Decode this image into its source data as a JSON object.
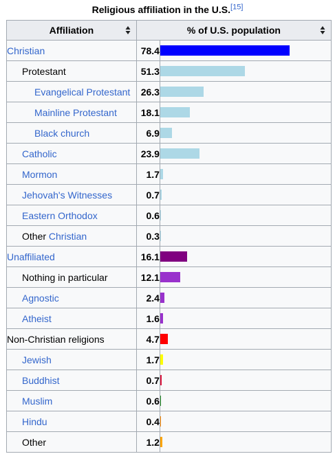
{
  "caption": {
    "title": "Religious affiliation in the U.S.",
    "ref": "[15]"
  },
  "header": {
    "affiliation": "Affiliation",
    "percent": "% of U.S. population"
  },
  "rows": [
    {
      "label": "Christian",
      "value": "78.4",
      "level": 0,
      "link": true,
      "color": "#0000ff"
    },
    {
      "label": "Protestant",
      "value": "51.3",
      "level": 1,
      "link": false,
      "color": "#add8e6"
    },
    {
      "label": "Evangelical Protestant",
      "value": "26.3",
      "level": 2,
      "link": true,
      "color": "#add8e6"
    },
    {
      "label": "Mainline Protestant",
      "value": "18.1",
      "level": 2,
      "link": true,
      "color": "#add8e6"
    },
    {
      "label": "Black church",
      "value": "6.9",
      "level": 2,
      "link": true,
      "color": "#add8e6"
    },
    {
      "label": "Catholic",
      "value": "23.9",
      "level": 1,
      "link": true,
      "color": "#add8e6"
    },
    {
      "label": "Mormon",
      "value": "1.7",
      "level": 1,
      "link": true,
      "color": "#add8e6"
    },
    {
      "label": "Jehovah's Witnesses",
      "value": "0.7",
      "level": 1,
      "link": true,
      "color": "#add8e6"
    },
    {
      "label": "Eastern Orthodox",
      "value": "0.6",
      "level": 1,
      "link": true,
      "color": "#add8e6"
    },
    {
      "label": "Other",
      "label_link": "Christian",
      "value": "0.3",
      "level": 1,
      "link": false,
      "color": "#add8e6"
    },
    {
      "label": "Unaffiliated",
      "value": "16.1",
      "level": 0,
      "link": true,
      "color": "#800080"
    },
    {
      "label": "Nothing in particular",
      "value": "12.1",
      "level": 1,
      "link": false,
      "color": "#9932cc"
    },
    {
      "label": "Agnostic",
      "value": "2.4",
      "level": 1,
      "link": true,
      "color": "#9932cc"
    },
    {
      "label": "Atheist",
      "value": "1.6",
      "level": 1,
      "link": true,
      "color": "#9932cc"
    },
    {
      "label": "Non-Christian religions",
      "value": "4.7",
      "level": 0,
      "link": false,
      "color": "#ff0000"
    },
    {
      "label": "Jewish",
      "value": "1.7",
      "level": 1,
      "link": true,
      "color": "#ffff00"
    },
    {
      "label": "Buddhist",
      "value": "0.7",
      "level": 1,
      "link": true,
      "color": "#dc143c"
    },
    {
      "label": "Muslim",
      "value": "0.6",
      "level": 1,
      "link": true,
      "color": "#228b22"
    },
    {
      "label": "Hindu",
      "value": "0.4",
      "level": 1,
      "link": true,
      "color": "#ff8c00"
    },
    {
      "label": "Other",
      "value": "1.2",
      "level": 1,
      "link": false,
      "color": "#ffa500"
    }
  ]
}
